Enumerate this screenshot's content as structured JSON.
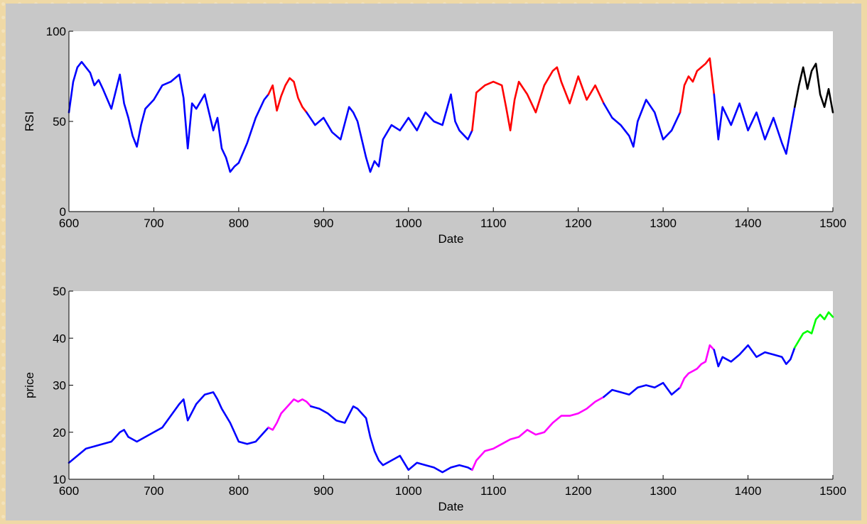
{
  "chart_data": [
    {
      "type": "line",
      "xlabel": "Date",
      "ylabel": "RSI",
      "xlim": [
        600,
        1500
      ],
      "ylim": [
        0,
        100
      ],
      "xticks": [
        600,
        700,
        800,
        900,
        1000,
        1100,
        1200,
        1300,
        1400,
        1500
      ],
      "yticks": [
        0,
        50,
        100
      ],
      "grid": false,
      "series": [
        {
          "color": "#0000ff",
          "x": [
            600,
            605,
            610,
            615,
            620,
            625,
            630,
            635,
            640,
            650,
            660,
            665,
            670,
            675,
            680,
            685,
            690,
            700,
            710,
            720,
            730,
            735,
            740,
            745,
            750,
            760,
            770,
            775,
            780,
            785,
            790,
            795,
            800,
            810,
            820,
            830,
            835
          ],
          "y": [
            55,
            72,
            80,
            83,
            80,
            77,
            70,
            73,
            68,
            57,
            76,
            60,
            52,
            42,
            36,
            48,
            57,
            62,
            70,
            72,
            76,
            63,
            35,
            60,
            57,
            65,
            45,
            52,
            35,
            30,
            22,
            25,
            27,
            38,
            52,
            62,
            65
          ]
        },
        {
          "color": "#ff0000",
          "x": [
            835,
            840,
            845,
            850,
            855,
            860,
            865,
            870,
            875,
            880
          ],
          "y": [
            65,
            70,
            56,
            64,
            70,
            74,
            72,
            63,
            58,
            55
          ]
        },
        {
          "color": "#0000ff",
          "x": [
            880,
            890,
            900,
            910,
            920,
            930,
            935,
            940,
            950,
            955,
            960,
            965,
            970,
            980,
            990,
            1000,
            1010,
            1020,
            1030,
            1040,
            1050,
            1055,
            1060,
            1070,
            1075
          ],
          "y": [
            55,
            48,
            52,
            44,
            40,
            58,
            55,
            50,
            30,
            22,
            28,
            25,
            40,
            48,
            45,
            52,
            45,
            55,
            50,
            48,
            65,
            50,
            45,
            40,
            45
          ]
        },
        {
          "color": "#ff0000",
          "x": [
            1075,
            1080,
            1090,
            1100,
            1110,
            1115,
            1120,
            1125,
            1130,
            1140,
            1150,
            1160,
            1170,
            1175,
            1180,
            1190,
            1200,
            1210,
            1220,
            1230
          ],
          "y": [
            45,
            66,
            70,
            72,
            70,
            58,
            45,
            62,
            72,
            65,
            55,
            70,
            78,
            80,
            72,
            60,
            75,
            62,
            70,
            60
          ]
        },
        {
          "color": "#0000ff",
          "x": [
            1230,
            1240,
            1250,
            1260,
            1265,
            1270,
            1280,
            1290,
            1300,
            1310,
            1320
          ],
          "y": [
            60,
            52,
            48,
            42,
            36,
            50,
            62,
            55,
            40,
            45,
            55
          ]
        },
        {
          "color": "#ff0000",
          "x": [
            1320,
            1325,
            1330,
            1335,
            1340,
            1345,
            1350,
            1355,
            1360
          ],
          "y": [
            55,
            70,
            75,
            72,
            78,
            80,
            82,
            85,
            65
          ]
        },
        {
          "color": "#0000ff",
          "x": [
            1360,
            1365,
            1370,
            1380,
            1390,
            1400,
            1410,
            1420,
            1430,
            1440,
            1445,
            1450,
            1455
          ],
          "y": [
            65,
            40,
            58,
            48,
            60,
            45,
            55,
            40,
            52,
            38,
            32,
            45,
            58
          ]
        },
        {
          "color": "#000000",
          "x": [
            1455,
            1460,
            1465,
            1470,
            1475,
            1480,
            1485,
            1490,
            1495,
            1500
          ],
          "y": [
            58,
            70,
            80,
            68,
            78,
            82,
            65,
            58,
            68,
            55
          ]
        }
      ]
    },
    {
      "type": "line",
      "xlabel": "Date",
      "ylabel": "price",
      "xlim": [
        600,
        1500
      ],
      "ylim": [
        10,
        50
      ],
      "xticks": [
        600,
        700,
        800,
        900,
        1000,
        1100,
        1200,
        1300,
        1400,
        1500
      ],
      "yticks": [
        10,
        20,
        30,
        40,
        50
      ],
      "grid": false,
      "series": [
        {
          "color": "#0000ff",
          "x": [
            600,
            610,
            620,
            630,
            640,
            650,
            660,
            665,
            670,
            680,
            690,
            700,
            710,
            720,
            730,
            735,
            740,
            750,
            760,
            770,
            775,
            780,
            790,
            800,
            810,
            820,
            830,
            835
          ],
          "y": [
            13.5,
            15,
            16.5,
            17,
            17.5,
            18,
            20,
            20.5,
            19,
            18,
            19,
            20,
            21,
            23.5,
            26,
            27,
            22.5,
            26,
            28,
            28.5,
            27,
            25,
            22,
            18,
            17.5,
            18,
            20,
            21
          ]
        },
        {
          "color": "#ff00ff",
          "x": [
            835,
            840,
            845,
            850,
            855,
            860,
            865,
            870,
            875,
            880,
            885
          ],
          "y": [
            21,
            20.5,
            22,
            24,
            25,
            26,
            27,
            26.5,
            27,
            26.5,
            25.5
          ]
        },
        {
          "color": "#0000ff",
          "x": [
            885,
            895,
            905,
            915,
            925,
            935,
            940,
            950,
            955,
            960,
            965,
            970,
            980,
            990,
            1000,
            1010,
            1020,
            1030,
            1040,
            1050,
            1060,
            1070,
            1075
          ],
          "y": [
            25.5,
            25,
            24,
            22.5,
            22,
            25.5,
            25,
            23,
            19,
            16,
            14,
            13,
            14,
            15,
            12,
            13.5,
            13,
            12.5,
            11.5,
            12.5,
            13,
            12.5,
            12
          ]
        },
        {
          "color": "#ff00ff",
          "x": [
            1075,
            1080,
            1090,
            1100,
            1110,
            1120,
            1130,
            1140,
            1150,
            1160,
            1170,
            1180,
            1190,
            1200,
            1210,
            1220,
            1230
          ],
          "y": [
            12,
            14,
            16,
            16.5,
            17.5,
            18.5,
            19,
            20.5,
            19.5,
            20,
            22,
            23.5,
            23.5,
            24,
            25,
            26.5,
            27.5
          ]
        },
        {
          "color": "#0000ff",
          "x": [
            1230,
            1240,
            1250,
            1260,
            1270,
            1280,
            1290,
            1300,
            1310,
            1320
          ],
          "y": [
            27.5,
            29,
            28.5,
            28,
            29.5,
            30,
            29.5,
            30.5,
            28,
            29.5
          ]
        },
        {
          "color": "#ff00ff",
          "x": [
            1320,
            1325,
            1330,
            1335,
            1340,
            1345,
            1350,
            1355,
            1360
          ],
          "y": [
            29.5,
            31.5,
            32.5,
            33,
            33.5,
            34.5,
            35,
            38.5,
            37.5
          ]
        },
        {
          "color": "#0000ff",
          "x": [
            1360,
            1365,
            1370,
            1380,
            1390,
            1400,
            1410,
            1420,
            1430,
            1440,
            1445,
            1450,
            1455
          ],
          "y": [
            37.5,
            34,
            36,
            35,
            36.5,
            38.5,
            36,
            37,
            36.5,
            36,
            34.5,
            35.5,
            38
          ]
        },
        {
          "color": "#00ff00",
          "x": [
            1455,
            1460,
            1465,
            1470,
            1475,
            1480,
            1485,
            1490,
            1495,
            1500
          ],
          "y": [
            38,
            39.5,
            41,
            41.5,
            41,
            44,
            45,
            44,
            45.5,
            44.5
          ]
        }
      ]
    }
  ]
}
